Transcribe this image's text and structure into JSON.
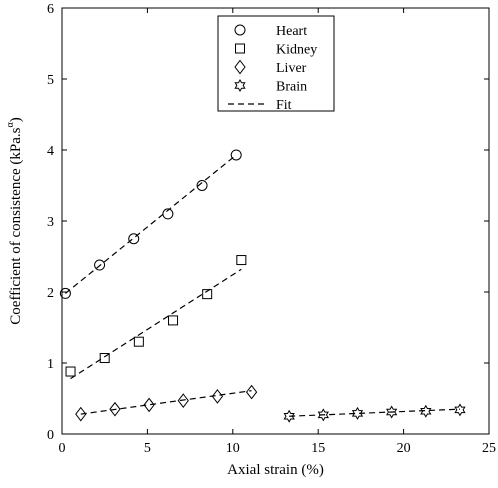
{
  "chart_data": {
    "type": "scatter",
    "xlabel": "Axial strain (%)",
    "ylabel": "Coefficient of consistence (kPa.s",
    "ylabel_sup": "α",
    "ylabel_close": ")",
    "xlim": [
      0,
      25
    ],
    "ylim": [
      0,
      6
    ],
    "xticks": [
      0,
      5,
      10,
      15,
      20,
      25
    ],
    "yticks": [
      0,
      1,
      2,
      3,
      4,
      5,
      6
    ],
    "grid": false,
    "legend_position": "top-center",
    "series": [
      {
        "name": "Heart",
        "marker": "circle",
        "x": [
          0.2,
          2.2,
          4.2,
          6.2,
          8.2,
          10.2
        ],
        "y": [
          1.98,
          2.38,
          2.75,
          3.1,
          3.5,
          3.93
        ],
        "fit": {
          "x": [
            0.2,
            10.2
          ],
          "y": [
            1.98,
            3.93
          ]
        }
      },
      {
        "name": "Kidney",
        "marker": "square",
        "x": [
          0.5,
          2.5,
          4.5,
          6.5,
          8.5,
          10.5
        ],
        "y": [
          0.88,
          1.07,
          1.3,
          1.6,
          1.97,
          2.45
        ],
        "fit": {
          "x": [
            0.5,
            10.5
          ],
          "y": [
            0.78,
            2.32
          ]
        }
      },
      {
        "name": "Liver",
        "marker": "diamond",
        "x": [
          1.1,
          3.1,
          5.1,
          7.1,
          9.1,
          11.1
        ],
        "y": [
          0.28,
          0.35,
          0.41,
          0.47,
          0.53,
          0.59
        ],
        "fit": {
          "x": [
            1.1,
            11.1
          ],
          "y": [
            0.28,
            0.61
          ]
        }
      },
      {
        "name": "Brain",
        "marker": "hexagram",
        "x": [
          13.3,
          15.3,
          17.3,
          19.3,
          21.3,
          23.3
        ],
        "y": [
          0.25,
          0.27,
          0.29,
          0.31,
          0.32,
          0.34
        ],
        "fit": {
          "x": [
            13.3,
            23.3
          ],
          "y": [
            0.25,
            0.35
          ]
        }
      }
    ],
    "fit_legend_label": "Fit"
  }
}
